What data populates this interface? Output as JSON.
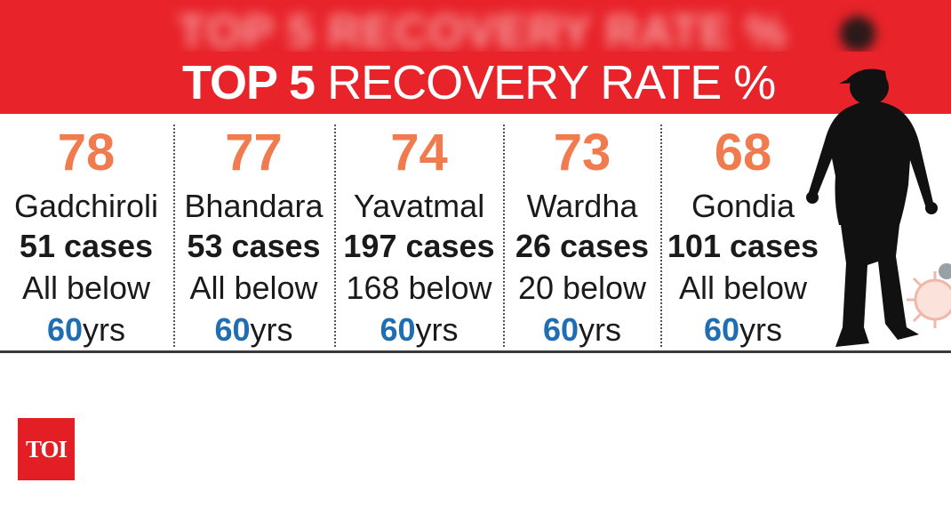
{
  "header": {
    "blurred_text": "TOP 5 RECOVERY RATE %",
    "title_bold": "TOP 5",
    "title_rest": " RECOVERY RATE %"
  },
  "districts": [
    {
      "rate": "78",
      "name": "Gadchiroli",
      "cases": "51 cases",
      "below": "All below",
      "age_num": "60",
      "age_unit": "yrs"
    },
    {
      "rate": "77",
      "name": "Bhandara",
      "cases": "53 cases",
      "below": "All below",
      "age_num": "60",
      "age_unit": "yrs"
    },
    {
      "rate": "74",
      "name": "Yavatmal",
      "cases": "197 cases",
      "below": "168 below",
      "age_num": "60",
      "age_unit": "yrs"
    },
    {
      "rate": "73",
      "name": "Wardha",
      "cases": "26 cases",
      "below": "20 below",
      "age_num": "60",
      "age_unit": "yrs"
    },
    {
      "rate": "68",
      "name": "Gondia",
      "cases": "101 cases",
      "below": "All below",
      "age_num": "60",
      "age_unit": "yrs"
    }
  ],
  "logo": {
    "text": "TOI"
  },
  "colors": {
    "header_red": "#e8232a",
    "rate_orange": "#ef7b4f",
    "age_blue": "#1f6db3",
    "band_grey": "#e3e3e6"
  },
  "chart_data": {
    "type": "table",
    "title": "TOP 5 RECOVERY RATE %",
    "categories": [
      "Gadchiroli",
      "Bhandara",
      "Yavatmal",
      "Wardha",
      "Gondia"
    ],
    "values": [
      78,
      77,
      74,
      73,
      68
    ],
    "cases": [
      51,
      53,
      197,
      26,
      101
    ],
    "below_60yrs": [
      "All",
      "All",
      "168",
      "20",
      "All"
    ]
  }
}
